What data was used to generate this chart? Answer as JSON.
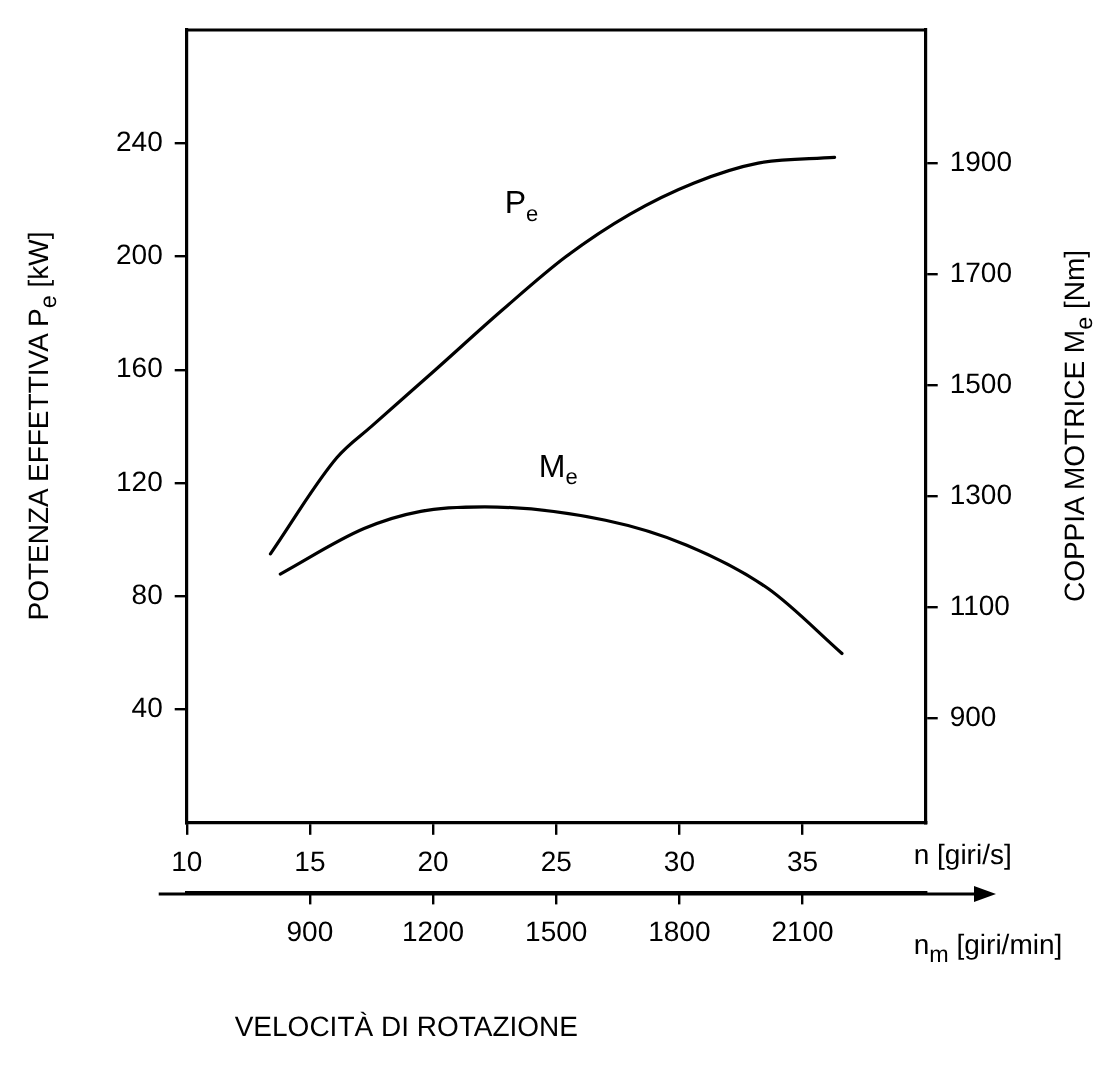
{
  "chart_data": {
    "type": "line",
    "xlabel": "n [giri/s]",
    "x2label": "n$_{m}$ [giri/min]",
    "ylabel": "POTENZA EFFETTIVA P$_{e}$ [kW]",
    "y2label": "COPPIA MOTRICE M$_{e}$ [Nm]",
    "annotations": [
      "VELOCITÀ DI ROTAZIONE"
    ],
    "xlim": [
      10,
      40
    ],
    "xticks": [
      10,
      15,
      20,
      25,
      30,
      35
    ],
    "x2lim": [
      600,
      2400
    ],
    "x2ticks": [
      900,
      1200,
      1500,
      1800,
      2100
    ],
    "ylim": [
      0,
      280
    ],
    "yticks": [
      40,
      80,
      120,
      160,
      200,
      240
    ],
    "y2lim": [
      712,
      2140
    ],
    "y2ticks": [
      900,
      1100,
      1300,
      1500,
      1700,
      1900
    ],
    "grid": false,
    "legend": false,
    "marker": "none",
    "line_style": "solid",
    "series": [
      {
        "name": "P$_{e}$",
        "color": "#000000",
        "axis": "y",
        "x": [
          13.4,
          16.1,
          17.5,
          20.1,
          22.8,
          25.4,
          28.0,
          30.6,
          33.2,
          36.3
        ],
        "values": [
          95,
          129,
          140,
          160,
          181,
          200,
          215,
          226,
          233,
          235
        ]
      },
      {
        "name": "M$_{e}$",
        "color": "#000000",
        "axis": "y2",
        "x": [
          13.8,
          17.2,
          19.5,
          22.1,
          27.0,
          30.3,
          33.6,
          36.6
        ],
        "values": [
          1160,
          1242,
          1273,
          1281,
          1257,
          1212,
          1134,
          1017
        ]
      }
    ]
  }
}
